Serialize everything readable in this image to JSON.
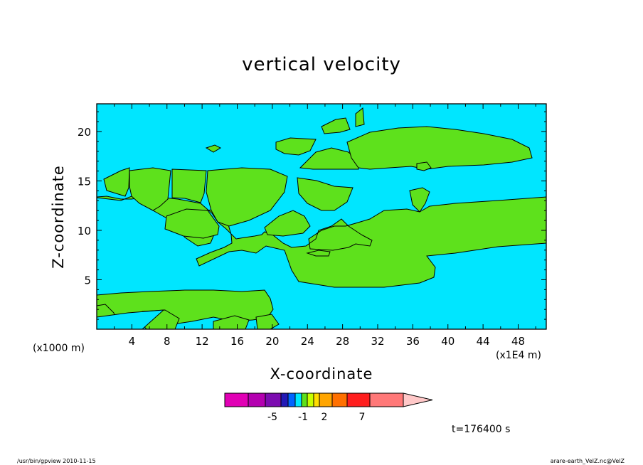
{
  "chart_data": {
    "type": "heatmap",
    "title": "vertical velocity",
    "xlabel": "X-coordinate",
    "ylabel": "Z-coordinate",
    "x_unit_note": "(x1000 m)",
    "x_scale_note": "(x1E4 m)",
    "x_ticks": [
      "4",
      "8",
      "12",
      "16",
      "20",
      "24",
      "28",
      "32",
      "36",
      "40",
      "44",
      "48"
    ],
    "y_ticks": [
      "5",
      "10",
      "15",
      "20"
    ],
    "xlim": [
      0,
      51.2
    ],
    "ylim": [
      0,
      22.8
    ],
    "time_label": "t=176400 s",
    "colorbar": {
      "levels": [
        "-5",
        "-1",
        "2",
        "7"
      ],
      "colors": [
        "#e100b5",
        "#b400b0",
        "#7c0cb0",
        "#2319b6",
        "#0064ff",
        "#00e6ff",
        "#5ee11c",
        "#c8ff00",
        "#ffdd00",
        "#ffa500",
        "#ff7000",
        "#ff1e1e",
        "#ff7878"
      ],
      "extend_color": "#ffc8c8"
    },
    "field_colors": {
      "background": "#00e6ff",
      "positive": "#5ee11c"
    }
  },
  "footer": {
    "left": "/usr/bin/gpview   2010-11-15",
    "right": "arare-earth_VelZ.nc@VelZ"
  }
}
